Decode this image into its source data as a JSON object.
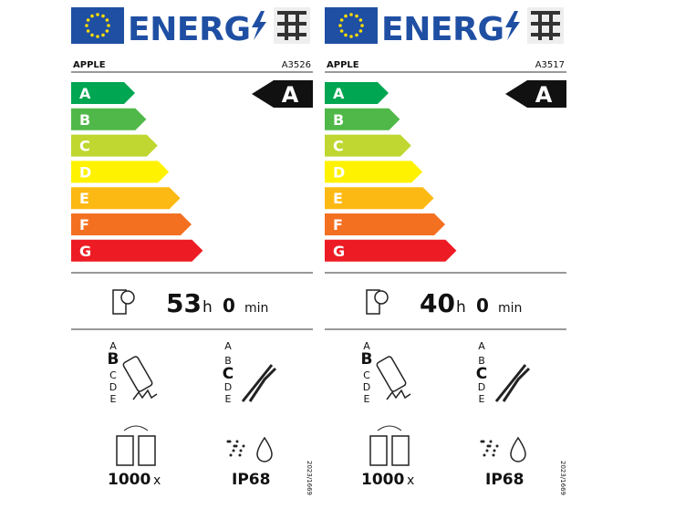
{
  "labels": [
    {
      "header": "ENERG",
      "brand": "APPLE",
      "model": "A3526",
      "classes": [
        "A",
        "B",
        "C",
        "D",
        "E",
        "F",
        "G"
      ],
      "class_colors": [
        "#00a651",
        "#50b848",
        "#bfd730",
        "#fff200",
        "#fdb913",
        "#f37021",
        "#ed1c24"
      ],
      "rating": "A",
      "battery_hours": 53,
      "hours_unit": "h",
      "battery_minutes": 0,
      "minutes_unit": "min",
      "drop_scale": [
        "A",
        "B",
        "C",
        "D",
        "E"
      ],
      "drop_class": "B",
      "repair_scale": [
        "A",
        "B",
        "C",
        "D",
        "E"
      ],
      "repair_class": "C",
      "cycles": 1000,
      "cycles_unit": "x",
      "ip_rating": "IP68",
      "regulation": "2023/1669"
    },
    {
      "header": "ENERG",
      "brand": "APPLE",
      "model": "A3517",
      "classes": [
        "A",
        "B",
        "C",
        "D",
        "E",
        "F",
        "G"
      ],
      "class_colors": [
        "#00a651",
        "#50b848",
        "#bfd730",
        "#fff200",
        "#fdb913",
        "#f37021",
        "#ed1c24"
      ],
      "rating": "A",
      "battery_hours": 40,
      "hours_unit": "h",
      "battery_minutes": 0,
      "minutes_unit": "min",
      "drop_scale": [
        "A",
        "B",
        "C",
        "D",
        "E"
      ],
      "drop_class": "B",
      "repair_scale": [
        "A",
        "B",
        "C",
        "D",
        "E"
      ],
      "repair_class": "C",
      "cycles": 1000,
      "cycles_unit": "x",
      "ip_rating": "IP68",
      "regulation": "2023/1669"
    }
  ]
}
